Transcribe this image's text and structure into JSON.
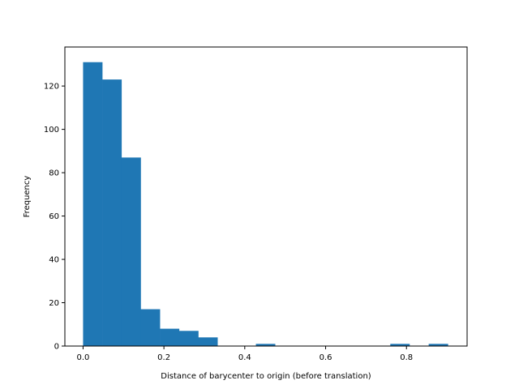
{
  "chart_data": {
    "type": "bar",
    "title": "",
    "xlabel": "Distance of barycenter to origin (before translation)",
    "ylabel": "Frequency",
    "bar_color": "#1f77b4",
    "bin_start": 0.0,
    "bin_width": 0.0475,
    "counts": [
      131,
      123,
      87,
      17,
      8,
      7,
      4,
      0,
      0,
      1,
      0,
      0,
      0,
      0,
      0,
      0,
      1,
      0,
      1
    ],
    "xlim": [
      -0.045,
      0.95
    ],
    "ylim": [
      0,
      138
    ],
    "xticks": [
      0.0,
      0.2,
      0.4,
      0.6,
      0.8
    ],
    "xtick_labels": [
      "0.0",
      "0.2",
      "0.4",
      "0.6",
      "0.8"
    ],
    "yticks": [
      0,
      20,
      40,
      60,
      80,
      100,
      120
    ],
    "ytick_labels": [
      "0",
      "20",
      "40",
      "60",
      "80",
      "100",
      "120"
    ],
    "grid": false,
    "legend": "none"
  }
}
